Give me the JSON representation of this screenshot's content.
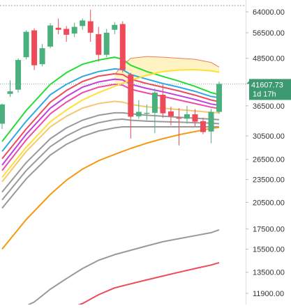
{
  "chart_data": {
    "type": "candlestick",
    "y_scale": "log",
    "y_ticks": [
      "64000.00",
      "56500.00",
      "48500.00",
      "36500.00",
      "30500.00",
      "26500.00",
      "23500.00",
      "20500.00",
      "17500.00",
      "15500.00",
      "13500.00",
      "11900.00"
    ],
    "ylim": [
      11200,
      70000
    ],
    "x_range": [
      0,
      29.5
    ],
    "price_label": {
      "value": "41607.73",
      "timer": "1d 17h",
      "price": 41607.73
    },
    "candles": [
      {
        "x": 0,
        "o": 32800,
        "h": 37000,
        "l": 31800,
        "c": 36800
      },
      {
        "x": 1,
        "o": 39200,
        "h": 42500,
        "l": 38500,
        "c": 39800
      },
      {
        "x": 2,
        "o": 40200,
        "h": 48500,
        "l": 39500,
        "c": 48000
      },
      {
        "x": 3,
        "o": 48800,
        "h": 57300,
        "l": 48200,
        "c": 56800
      },
      {
        "x": 4,
        "o": 57300,
        "h": 58000,
        "l": 45200,
        "c": 46500
      },
      {
        "x": 5,
        "o": 46800,
        "h": 52800,
        "l": 46200,
        "c": 51500
      },
      {
        "x": 6,
        "o": 52000,
        "h": 59800,
        "l": 51500,
        "c": 59000
      },
      {
        "x": 7,
        "o": 58200,
        "h": 61500,
        "l": 56000,
        "c": 57500
      },
      {
        "x": 8,
        "o": 57800,
        "h": 58800,
        "l": 53500,
        "c": 55800
      },
      {
        "x": 9,
        "o": 56200,
        "h": 60000,
        "l": 55000,
        "c": 58500
      },
      {
        "x": 10,
        "o": 58800,
        "h": 61500,
        "l": 57500,
        "c": 60800
      },
      {
        "x": 11,
        "o": 60500,
        "h": 64800,
        "l": 53500,
        "c": 56500
      },
      {
        "x": 12,
        "o": 56000,
        "h": 58500,
        "l": 47500,
        "c": 49500
      },
      {
        "x": 13,
        "o": 49500,
        "h": 57800,
        "l": 48800,
        "c": 56500
      },
      {
        "x": 14,
        "o": 57500,
        "h": 60200,
        "l": 56000,
        "c": 59200
      },
      {
        "x": 15,
        "o": 59500,
        "h": 60500,
        "l": 44500,
        "c": 45200
      },
      {
        "x": 16,
        "o": 44000,
        "h": 44500,
        "l": 30000,
        "c": 34200
      },
      {
        "x": 17,
        "o": 34300,
        "h": 37800,
        "l": 33800,
        "c": 35200
      },
      {
        "x": 18,
        "o": 34800,
        "h": 36800,
        "l": 33500,
        "c": 35000
      },
      {
        "x": 19,
        "o": 35000,
        "h": 40500,
        "l": 31000,
        "c": 39500
      },
      {
        "x": 20,
        "o": 39000,
        "h": 41500,
        "l": 34000,
        "c": 34900
      },
      {
        "x": 21,
        "o": 35300,
        "h": 36300,
        "l": 32500,
        "c": 34300
      },
      {
        "x": 22,
        "o": 34000,
        "h": 36000,
        "l": 28800,
        "c": 33800
      },
      {
        "x": 23,
        "o": 33800,
        "h": 36500,
        "l": 32800,
        "c": 34700
      },
      {
        "x": 24,
        "o": 34700,
        "h": 35800,
        "l": 32300,
        "c": 33200
      },
      {
        "x": 25,
        "o": 33300,
        "h": 34000,
        "l": 30800,
        "c": 31200
      },
      {
        "x": 26,
        "o": 31300,
        "h": 35800,
        "l": 29200,
        "c": 35200
      },
      {
        "x": 27,
        "o": 35200,
        "h": 42200,
        "l": 34800,
        "c": 41600
      }
    ],
    "colors": {
      "up": "#4caf7e",
      "down": "#ef4a5a",
      "cloud_fill": "#fff3c4",
      "price_label_bg": "#3d9970",
      "axis_text": "#333333",
      "dotted_line": "#8aa89a",
      "dashed_line": "#999999"
    },
    "series": [
      {
        "color": "#22dd33",
        "points": [
          [
            0,
            29500
          ],
          [
            3,
            35500
          ],
          [
            6,
            41500
          ],
          [
            8,
            44500
          ],
          [
            10,
            46800
          ],
          [
            12,
            48000
          ],
          [
            14,
            48800
          ],
          [
            15,
            48200
          ],
          [
            16,
            46500
          ],
          [
            18,
            44800
          ],
          [
            20,
            43500
          ],
          [
            22,
            42300
          ],
          [
            24,
            41000
          ],
          [
            26,
            39500
          ],
          [
            27,
            39000
          ]
        ]
      },
      {
        "color": "#30a8e8",
        "points": [
          [
            0,
            27800
          ],
          [
            3,
            33300
          ],
          [
            6,
            39000
          ],
          [
            8,
            41500
          ],
          [
            10,
            43500
          ],
          [
            12,
            44800
          ],
          [
            14,
            45500
          ],
          [
            15,
            45300
          ],
          [
            16,
            44000
          ],
          [
            18,
            42800
          ],
          [
            20,
            41700
          ],
          [
            22,
            40800
          ],
          [
            24,
            39800
          ],
          [
            26,
            38600
          ],
          [
            27,
            38300
          ]
        ]
      },
      {
        "color": "#ef4a5a",
        "points": [
          [
            0,
            26600
          ],
          [
            3,
            31800
          ],
          [
            6,
            37300
          ],
          [
            8,
            40000
          ],
          [
            10,
            42200
          ],
          [
            12,
            43600
          ],
          [
            14,
            44200
          ],
          [
            15,
            44000
          ],
          [
            16,
            42800
          ],
          [
            18,
            41700
          ],
          [
            20,
            40800
          ],
          [
            22,
            39900
          ],
          [
            24,
            38900
          ],
          [
            26,
            37800
          ],
          [
            27,
            37400
          ]
        ]
      },
      {
        "color": "#c23ee0",
        "points": [
          [
            0,
            25600
          ],
          [
            3,
            30800
          ],
          [
            6,
            36000
          ],
          [
            8,
            38600
          ],
          [
            10,
            40800
          ],
          [
            12,
            42100
          ],
          [
            14,
            42800
          ],
          [
            15,
            42600
          ],
          [
            16,
            41500
          ],
          [
            18,
            40500
          ],
          [
            20,
            39700
          ],
          [
            22,
            38800
          ],
          [
            24,
            37900
          ],
          [
            26,
            36900
          ],
          [
            27,
            36600
          ]
        ]
      },
      {
        "color": "#ef4aa8",
        "points": [
          [
            0,
            24800
          ],
          [
            3,
            29800
          ],
          [
            6,
            34800
          ],
          [
            8,
            37300
          ],
          [
            10,
            39500
          ],
          [
            12,
            40800
          ],
          [
            14,
            41500
          ],
          [
            15,
            41300
          ],
          [
            16,
            40300
          ],
          [
            18,
            39400
          ],
          [
            20,
            38600
          ],
          [
            22,
            37800
          ],
          [
            24,
            37000
          ],
          [
            26,
            36200
          ],
          [
            27,
            35900
          ]
        ]
      },
      {
        "color": "#ffe033",
        "points": [
          [
            0,
            23800
          ],
          [
            3,
            28500
          ],
          [
            6,
            33200
          ],
          [
            8,
            35600
          ],
          [
            10,
            37800
          ],
          [
            12,
            39500
          ],
          [
            14,
            41000
          ],
          [
            16,
            42500
          ],
          [
            18,
            43800
          ],
          [
            20,
            44800
          ],
          [
            22,
            45200
          ],
          [
            24,
            45300
          ],
          [
            26,
            45000
          ],
          [
            27,
            44600
          ]
        ]
      },
      {
        "color": "#f5c870",
        "points": [
          [
            0,
            23200
          ],
          [
            3,
            27800
          ],
          [
            6,
            32200
          ],
          [
            8,
            34300
          ],
          [
            10,
            36000
          ],
          [
            12,
            37000
          ],
          [
            14,
            37500
          ],
          [
            15,
            37300
          ],
          [
            16,
            36800
          ],
          [
            18,
            36300
          ],
          [
            20,
            36000
          ],
          [
            22,
            35700
          ],
          [
            24,
            35400
          ],
          [
            26,
            35100
          ],
          [
            27,
            35000
          ]
        ]
      },
      {
        "color": "#ef7a5a",
        "points": [
          [
            14,
            44000
          ],
          [
            15,
            46500
          ],
          [
            16,
            48500
          ],
          [
            18,
            49000
          ],
          [
            20,
            48800
          ],
          [
            22,
            48500
          ],
          [
            24,
            48200
          ],
          [
            26,
            47300
          ],
          [
            27,
            46000
          ]
        ]
      },
      {
        "color": "#999999",
        "points": [
          [
            0,
            21800
          ],
          [
            3,
            26000
          ],
          [
            6,
            30000
          ],
          [
            8,
            32000
          ],
          [
            10,
            33500
          ],
          [
            12,
            34500
          ],
          [
            14,
            35000
          ],
          [
            15,
            35000
          ],
          [
            16,
            34800
          ],
          [
            18,
            34500
          ],
          [
            20,
            34300
          ],
          [
            22,
            34100
          ],
          [
            24,
            33900
          ],
          [
            26,
            33700
          ],
          [
            27,
            33600
          ]
        ]
      },
      {
        "color": "#999999",
        "points": [
          [
            0,
            20800
          ],
          [
            3,
            24800
          ],
          [
            6,
            28600
          ],
          [
            8,
            30500
          ],
          [
            10,
            32000
          ],
          [
            12,
            33000
          ],
          [
            14,
            33600
          ],
          [
            15,
            33700
          ],
          [
            16,
            33500
          ],
          [
            18,
            33300
          ],
          [
            20,
            33200
          ],
          [
            22,
            33100
          ],
          [
            24,
            33000
          ],
          [
            26,
            32900
          ],
          [
            27,
            32800
          ]
        ]
      },
      {
        "color": "#999999",
        "points": [
          [
            0,
            19800
          ],
          [
            3,
            23600
          ],
          [
            6,
            27200
          ],
          [
            8,
            29000
          ],
          [
            10,
            30400
          ],
          [
            12,
            31400
          ],
          [
            14,
            32000
          ],
          [
            15,
            32200
          ],
          [
            16,
            32200
          ],
          [
            18,
            32200
          ],
          [
            20,
            32200
          ],
          [
            22,
            32200
          ],
          [
            24,
            32200
          ],
          [
            26,
            32200
          ],
          [
            27,
            32200
          ]
        ]
      },
      {
        "color": "#f59a10",
        "points": [
          [
            0,
            15500
          ],
          [
            3,
            18500
          ],
          [
            6,
            21500
          ],
          [
            8,
            23400
          ],
          [
            10,
            25000
          ],
          [
            12,
            26300
          ],
          [
            14,
            27300
          ],
          [
            16,
            28300
          ],
          [
            18,
            29200
          ],
          [
            20,
            30000
          ],
          [
            22,
            30700
          ],
          [
            24,
            31300
          ],
          [
            26,
            31900
          ],
          [
            27,
            32100
          ]
        ]
      },
      {
        "color": "#999999",
        "points": [
          [
            2,
            10800
          ],
          [
            4,
            11300
          ],
          [
            6,
            12200
          ],
          [
            8,
            13000
          ],
          [
            10,
            13800
          ],
          [
            12,
            14500
          ],
          [
            14,
            15000
          ],
          [
            16,
            15400
          ],
          [
            18,
            15800
          ],
          [
            20,
            16200
          ],
          [
            22,
            16500
          ],
          [
            24,
            16800
          ],
          [
            26,
            17100
          ],
          [
            27,
            17400
          ]
        ]
      },
      {
        "color": "#ef4a5a",
        "points": [
          [
            8,
            10800
          ],
          [
            10,
            11200
          ],
          [
            12,
            11800
          ],
          [
            14,
            12300
          ],
          [
            16,
            12600
          ],
          [
            18,
            12900
          ],
          [
            20,
            13200
          ],
          [
            22,
            13500
          ],
          [
            24,
            13800
          ],
          [
            26,
            14100
          ],
          [
            27,
            14300
          ]
        ]
      }
    ]
  }
}
